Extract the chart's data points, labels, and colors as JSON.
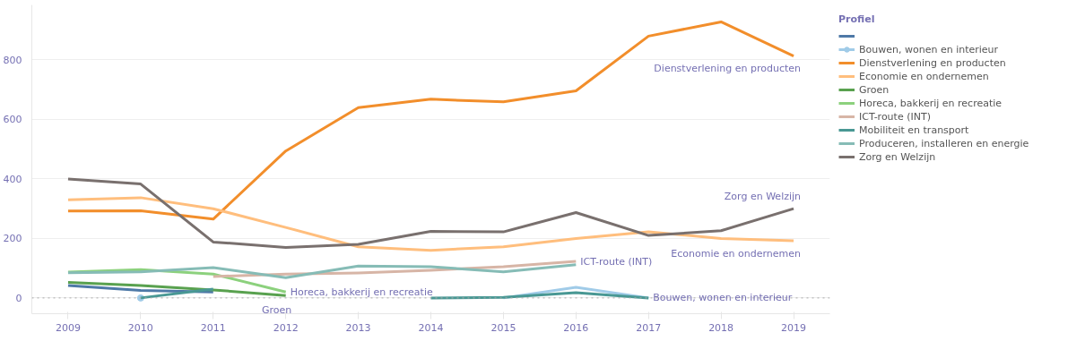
{
  "chart_data": {
    "type": "line",
    "legend_title": "Profiel",
    "legend": "right",
    "grid": "y",
    "marker": "none",
    "line_style": "solid",
    "x": [
      2009,
      2010,
      2011,
      2012,
      2013,
      2014,
      2015,
      2016,
      2017,
      2018,
      2019
    ],
    "xlim": [
      2008.5,
      2019.5
    ],
    "xticks": [
      2009,
      2010,
      2011,
      2012,
      2013,
      2014,
      2015,
      2016,
      2017,
      2018,
      2019
    ],
    "ylim": [
      -53,
      985
    ],
    "yticks": [
      0,
      200,
      400,
      600,
      800
    ],
    "series": [
      {
        "name": null,
        "color": "#4e79a7",
        "values": [
          42,
          25,
          20,
          null,
          null,
          null,
          null,
          null,
          null,
          null,
          null
        ]
      },
      {
        "name": "Bouwen, wonen en interieur",
        "color": "#a0cbe8",
        "values": [
          null,
          0,
          null,
          null,
          null,
          null,
          0,
          36,
          0,
          null,
          null
        ]
      },
      {
        "name": "Dienstverlening en producten",
        "color": "#f28e2b",
        "values": [
          292,
          293,
          265,
          494,
          640,
          668,
          659,
          696,
          880,
          928,
          813
        ]
      },
      {
        "name": "Economie en ondernemen",
        "color": "#ffbe7d",
        "values": [
          330,
          337,
          300,
          237,
          172,
          160,
          172,
          200,
          222,
          200,
          192
        ]
      },
      {
        "name": "Groen",
        "color": "#59a14f",
        "values": [
          52,
          42,
          27,
          8,
          null,
          null,
          null,
          null,
          null,
          null,
          null
        ]
      },
      {
        "name": "Horeca, bakkerij en recreatie",
        "color": "#8cd17d",
        "values": [
          87,
          95,
          80,
          20,
          null,
          null,
          null,
          null,
          null,
          null,
          null
        ]
      },
      {
        "name": "ICT-route (INT)",
        "color": "#d7b5a6",
        "values": [
          null,
          null,
          72,
          80,
          84,
          93,
          105,
          123,
          null,
          null,
          null
        ]
      },
      {
        "name": "Mobiliteit en transport",
        "color": "#499894",
        "values": [
          null,
          0,
          30,
          null,
          null,
          0,
          2,
          18,
          0,
          null,
          null
        ]
      },
      {
        "name": "Produceren, installeren en energie",
        "color": "#86bcb6",
        "values": [
          85,
          88,
          102,
          68,
          107,
          105,
          88,
          112,
          null,
          null,
          null
        ]
      },
      {
        "name": "Zorg en Welzijn",
        "color": "#79706e",
        "values": [
          400,
          383,
          188,
          170,
          180,
          224,
          222,
          287,
          210,
          226,
          300
        ]
      }
    ],
    "ref_lines": [
      {
        "axis": "y",
        "value": 0,
        "label": null,
        "color": "#aaaaaa",
        "line_style": "dotted"
      }
    ],
    "annotations": [
      {
        "text": "Dienstverlening en producten",
        "x": 2019,
        "y": 813
      },
      {
        "text": "Zorg en Welzijn",
        "x": 2019,
        "y": 300
      },
      {
        "text": "Economie en ondernemen",
        "x": 2019,
        "y": 192
      },
      {
        "text": "ICT-route (INT)",
        "x": 2016,
        "y": 123
      },
      {
        "text": "Horeca, bakkerij en recreatie",
        "x": 2012,
        "y": 20
      },
      {
        "text": "Groen",
        "x": 2012,
        "y": 8
      },
      {
        "text": "Bouwen, wonen en interieur",
        "x": 2017,
        "y": 0
      }
    ]
  }
}
